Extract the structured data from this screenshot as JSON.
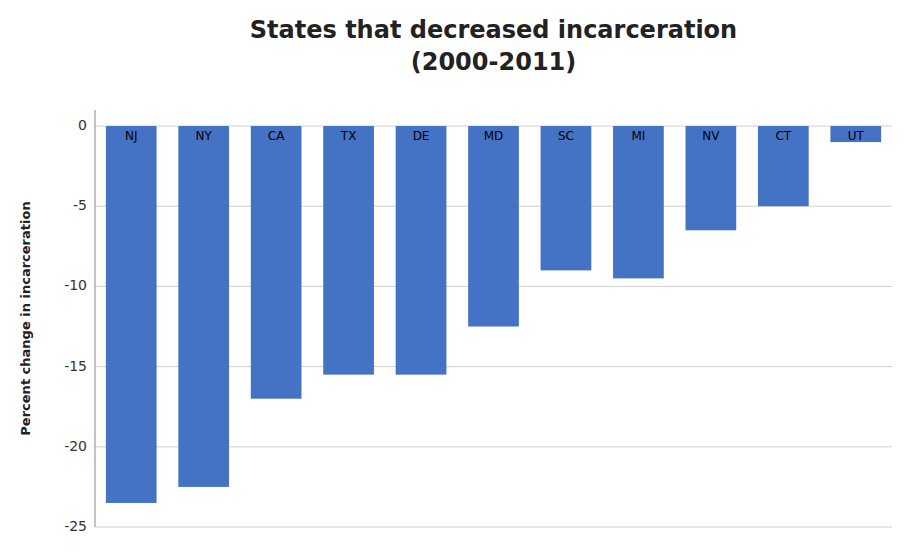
{
  "chart_data": {
    "type": "bar",
    "title": "States that decreased incarceration\n(2000-2011)",
    "ylabel": "Percent change in incarceration",
    "categories": [
      "NJ",
      "NY",
      "CA",
      "TX",
      "DE",
      "MD",
      "SC",
      "MI",
      "NV",
      "CT",
      "UT"
    ],
    "values": [
      -23.5,
      -22.5,
      -17.0,
      -15.5,
      -15.5,
      -12.5,
      -9.0,
      -9.5,
      -6.5,
      -5.0,
      -1.0
    ],
    "color": "#4472C4",
    "ylim": [
      -25,
      1
    ],
    "yticks": [
      0,
      -5,
      -10,
      -15,
      -20,
      -25
    ],
    "grid": true
  }
}
